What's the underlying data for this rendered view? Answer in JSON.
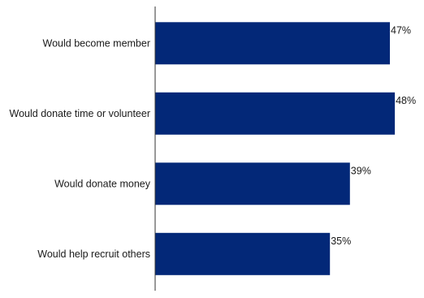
{
  "chart_data": {
    "type": "bar",
    "orientation": "horizontal",
    "categories": [
      "Would become member",
      "Would donate time or volunteer",
      "Would donate money",
      "Would help recruit others"
    ],
    "values": [
      47,
      48,
      39,
      35
    ],
    "value_labels": [
      "47%",
      "48%",
      "39%",
      "35%"
    ],
    "title": "",
    "xlabel": "",
    "ylabel": "",
    "xlim": [
      0,
      54
    ],
    "grid": false,
    "legend": "none",
    "bar_color": "#032878",
    "axis_color": "#333333"
  }
}
